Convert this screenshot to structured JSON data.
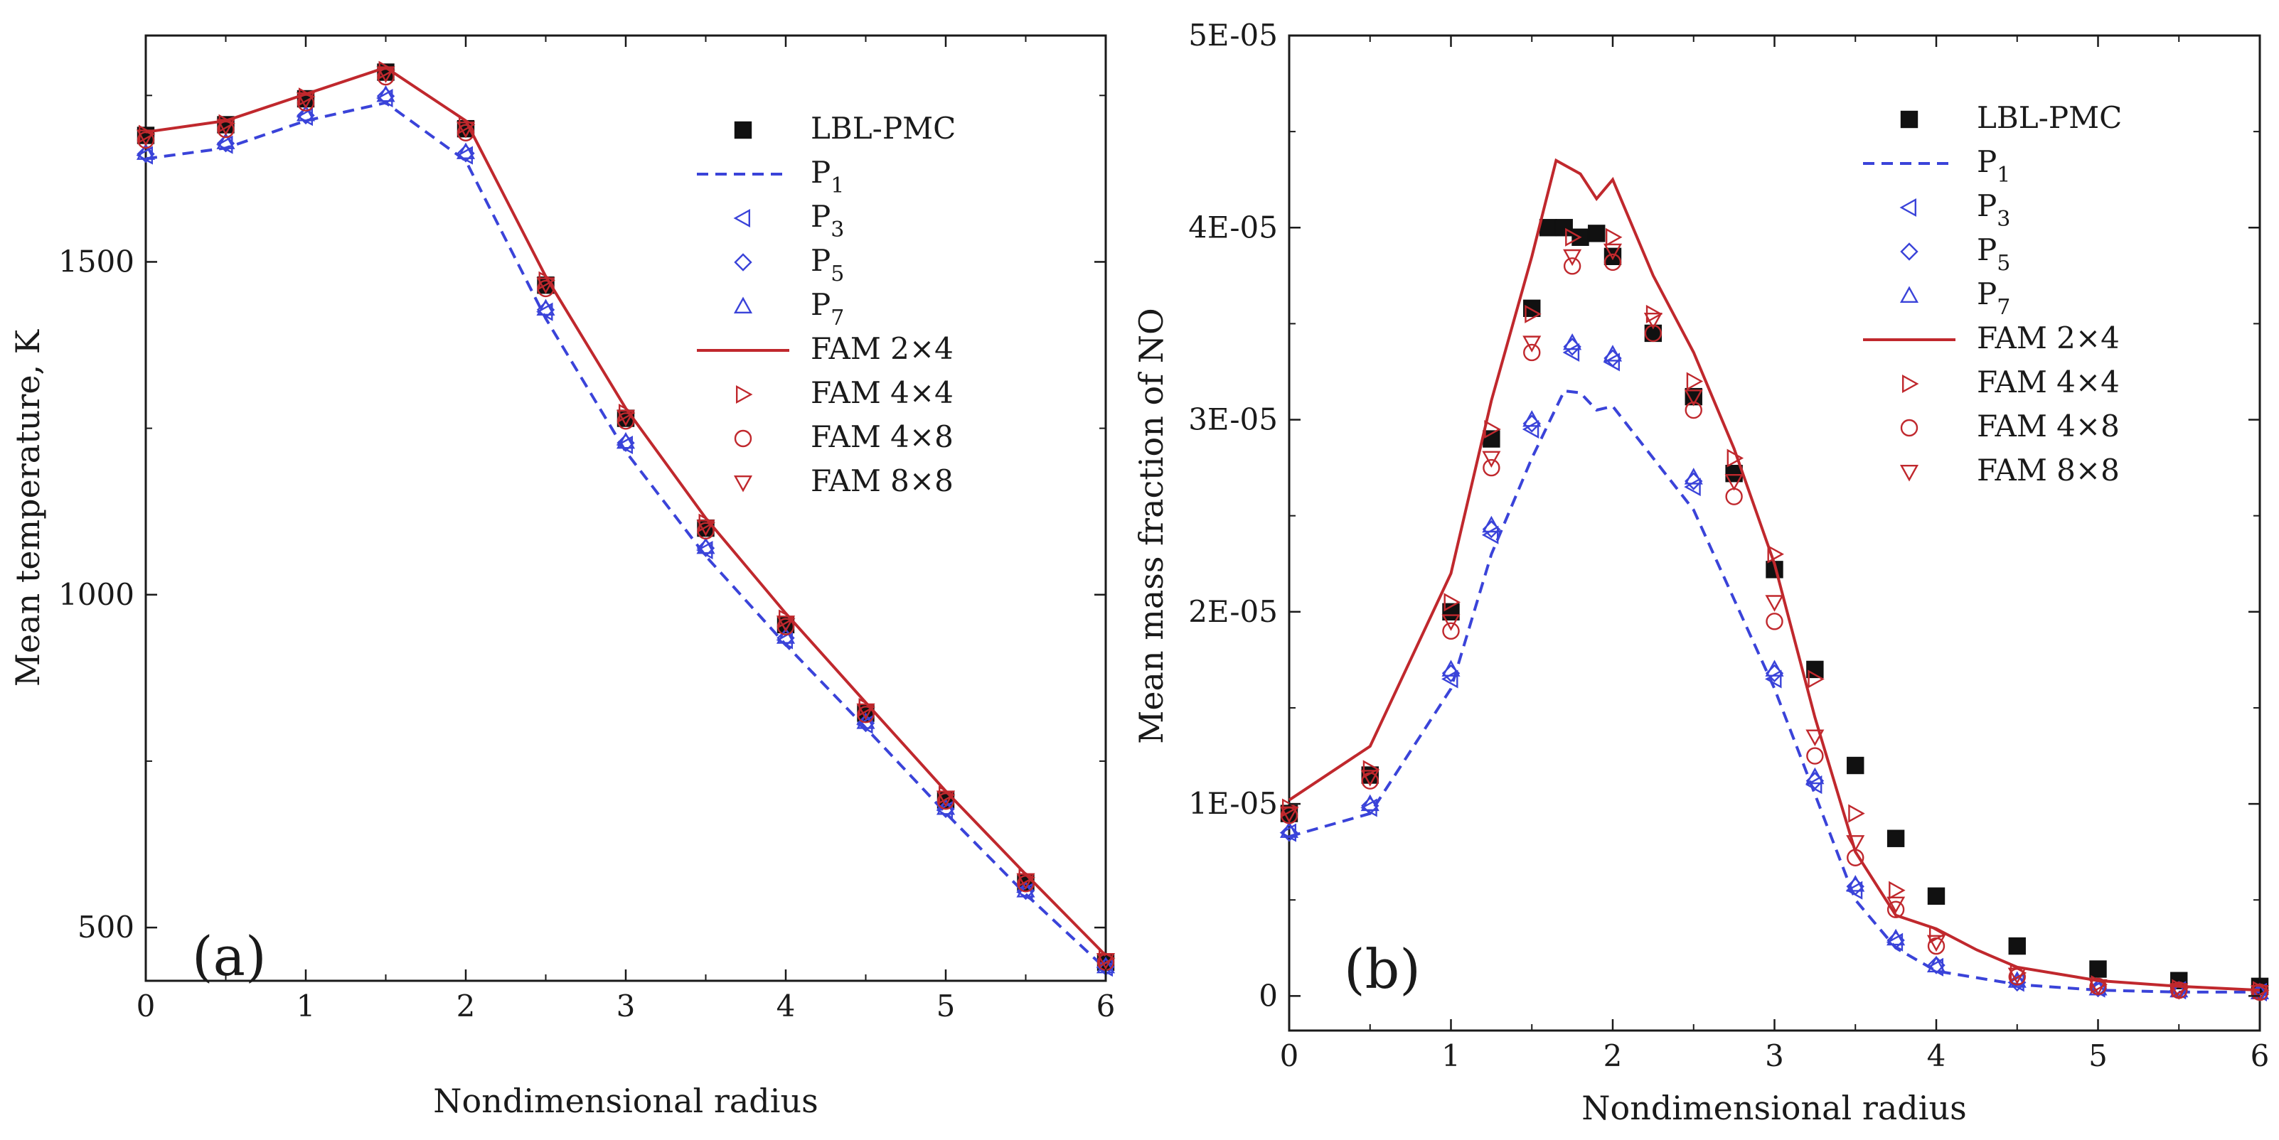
{
  "colors": {
    "lbl_pmc": "#111111",
    "p_series": "#3a43d9",
    "fam_series": "#c0282d",
    "frame": "#1a1a1a"
  },
  "legend": [
    {
      "key": "lbl",
      "label": "LBL-PMC",
      "base": "LBL-PMC",
      "sub": "",
      "marker": "square",
      "color": "#111111"
    },
    {
      "key": "p1",
      "label": "P1",
      "base": "P",
      "sub": "1",
      "marker": "dash",
      "color": "#3a43d9"
    },
    {
      "key": "p3",
      "label": "P3",
      "base": "P",
      "sub": "3",
      "marker": "tri-left",
      "color": "#3a43d9"
    },
    {
      "key": "p5",
      "label": "P5",
      "base": "P",
      "sub": "5",
      "marker": "diamond",
      "color": "#3a43d9"
    },
    {
      "key": "p7",
      "label": "P7",
      "base": "P",
      "sub": "7",
      "marker": "tri-up",
      "color": "#3a43d9"
    },
    {
      "key": "fam24",
      "label": "FAM 2×4",
      "base": "FAM 2×4",
      "sub": "",
      "marker": "solid",
      "color": "#c0282d"
    },
    {
      "key": "fam44",
      "label": "FAM 4×4",
      "base": "FAM 4×4",
      "sub": "",
      "marker": "tri-right",
      "color": "#c0282d"
    },
    {
      "key": "fam48",
      "label": "FAM 4×8",
      "base": "FAM 4×8",
      "sub": "",
      "marker": "circle",
      "color": "#c0282d"
    },
    {
      "key": "fam88",
      "label": "FAM 8×8",
      "base": "FAM 8×8",
      "sub": "",
      "marker": "tri-down",
      "color": "#c0282d"
    }
  ],
  "chart_data": [
    {
      "type": "line",
      "panel_label": "(a)",
      "xlabel": "Nondimensional radius",
      "ylabel": "Mean temperature, K",
      "xlim": [
        0,
        6
      ],
      "ylim": [
        420,
        1840
      ],
      "xticks": [
        0,
        1,
        2,
        3,
        4,
        5,
        6
      ],
      "xtick_labels": [
        "0",
        "1",
        "2",
        "3",
        "4",
        "5",
        "6"
      ],
      "yticks": [
        500,
        1000,
        1500
      ],
      "ytick_labels": [
        "500",
        "1000",
        "1500"
      ],
      "legend_position": "top-right",
      "series": [
        {
          "key": "lbl",
          "name": "LBL-PMC",
          "x": [
            0,
            0.5,
            1,
            1.5,
            2,
            2.5,
            3,
            3.5,
            4,
            4.5,
            5,
            5.5,
            6
          ],
          "y": [
            1690,
            1706,
            1745,
            1785,
            1700,
            1465,
            1265,
            1100,
            955,
            822,
            692,
            568,
            448
          ]
        },
        {
          "key": "p1",
          "name": "P1",
          "x": [
            0,
            0.5,
            1,
            1.5,
            2,
            2.5,
            3,
            3.5,
            4,
            4.5,
            5,
            5.5,
            6
          ],
          "y": [
            1655,
            1671,
            1712,
            1739,
            1652,
            1415,
            1215,
            1058,
            925,
            800,
            672,
            550,
            438
          ]
        },
        {
          "key": "p3",
          "name": "P3",
          "x": [
            0,
            0.5,
            1,
            1.5,
            2,
            2.5,
            3,
            3.5,
            4,
            4.5,
            5,
            5.5,
            6
          ],
          "y": [
            1660,
            1676,
            1718,
            1746,
            1660,
            1425,
            1225,
            1067,
            932,
            805,
            676,
            553,
            440
          ]
        },
        {
          "key": "p5",
          "name": "P5",
          "x": [
            0,
            0.5,
            1,
            1.5,
            2,
            2.5,
            3,
            3.5,
            4,
            4.5,
            5,
            5.5,
            6
          ],
          "y": [
            1662,
            1678,
            1720,
            1749,
            1663,
            1428,
            1228,
            1070,
            935,
            807,
            678,
            555,
            441
          ]
        },
        {
          "key": "p7",
          "name": "P7",
          "x": [
            0,
            0.5,
            1,
            1.5,
            2,
            2.5,
            3,
            3.5,
            4,
            4.5,
            5,
            5.5,
            6
          ],
          "y": [
            1664,
            1680,
            1722,
            1751,
            1665,
            1430,
            1230,
            1072,
            937,
            809,
            680,
            556,
            442
          ]
        },
        {
          "key": "fam24",
          "name": "FAM 2×4",
          "x": [
            0,
            0.5,
            1,
            1.5,
            2,
            2.5,
            3,
            3.5,
            4,
            4.5,
            5,
            5.5,
            6
          ],
          "y": [
            1695,
            1712,
            1752,
            1792,
            1712,
            1478,
            1280,
            1115,
            972,
            838,
            705,
            580,
            458
          ]
        },
        {
          "key": "fam44",
          "name": "FAM 4×4",
          "x": [
            0,
            0.5,
            1,
            1.5,
            2,
            2.5,
            3,
            3.5,
            4,
            4.5,
            5,
            5.5,
            6
          ],
          "y": [
            1692,
            1708,
            1748,
            1788,
            1706,
            1472,
            1273,
            1108,
            964,
            831,
            699,
            575,
            454
          ]
        },
        {
          "key": "fam48",
          "name": "FAM 4×8",
          "x": [
            0,
            0.5,
            1,
            1.5,
            2,
            2.5,
            3,
            3.5,
            4,
            4.5,
            5,
            5.5,
            6
          ],
          "y": [
            1683,
            1699,
            1739,
            1778,
            1694,
            1460,
            1261,
            1096,
            952,
            820,
            690,
            566,
            448
          ]
        },
        {
          "key": "fam88",
          "name": "FAM 8×8",
          "x": [
            0,
            0.5,
            1,
            1.5,
            2,
            2.5,
            3,
            3.5,
            4,
            4.5,
            5,
            5.5,
            6
          ],
          "y": [
            1688,
            1704,
            1744,
            1783,
            1700,
            1466,
            1267,
            1102,
            958,
            826,
            695,
            571,
            451
          ]
        }
      ]
    },
    {
      "type": "line",
      "panel_label": "(b)",
      "xlabel": "Nondimensional radius",
      "ylabel": "Mean mass fraction of NO",
      "xlim": [
        0,
        6
      ],
      "ylim": [
        -1.8e-06,
        5e-05
      ],
      "xticks": [
        0,
        1,
        2,
        3,
        4,
        5,
        6
      ],
      "xtick_labels": [
        "0",
        "1",
        "2",
        "3",
        "4",
        "5",
        "6"
      ],
      "yticks": [
        0,
        1e-05,
        2e-05,
        3e-05,
        4e-05,
        5e-05
      ],
      "ytick_labels": [
        "0",
        "1E-05",
        "2E-05",
        "3E-05",
        "4E-05",
        "5E-05"
      ],
      "legend_position": "top-right",
      "series": [
        {
          "key": "lbl",
          "name": "LBL-PMC",
          "x": [
            0,
            0.5,
            1,
            1.25,
            1.5,
            1.6,
            1.7,
            1.8,
            1.9,
            2,
            2.25,
            2.5,
            2.75,
            3,
            3.25,
            3.5,
            3.75,
            4,
            4.5,
            5,
            5.5,
            6
          ],
          "y": [
            9.5e-06,
            1.15e-05,
            2e-05,
            2.9e-05,
            3.58e-05,
            4e-05,
            4e-05,
            3.95e-05,
            3.97e-05,
            3.85e-05,
            3.45e-05,
            3.12e-05,
            2.72e-05,
            2.22e-05,
            1.7e-05,
            1.2e-05,
            8.2e-06,
            5.2e-06,
            2.6e-06,
            1.4e-06,
            8e-07,
            5e-07
          ]
        },
        {
          "key": "p1",
          "name": "P1",
          "x": [
            0,
            0.5,
            1,
            1.25,
            1.5,
            1.7,
            1.8,
            1.9,
            2,
            2.5,
            3,
            3.25,
            3.5,
            3.75,
            4,
            4.5,
            5,
            5.5,
            6
          ],
          "y": [
            8.3e-06,
            9.5e-06,
            1.6e-05,
            2.3e-05,
            2.8e-05,
            3.15e-05,
            3.14e-05,
            3.05e-05,
            3.07e-05,
            2.53e-05,
            1.6e-05,
            1.05e-05,
            5e-06,
            2.5e-06,
            1.3e-06,
            6e-07,
            3e-07,
            2e-07,
            2e-07
          ]
        },
        {
          "key": "p3",
          "name": "P3",
          "x": [
            0,
            0.5,
            1,
            1.25,
            1.5,
            1.75,
            2,
            2.5,
            3,
            3.25,
            3.5,
            3.75,
            4,
            4.5,
            5,
            5.5,
            6
          ],
          "y": [
            8.5e-06,
            9.8e-06,
            1.65e-05,
            2.4e-05,
            2.95e-05,
            3.35e-05,
            3.3e-05,
            2.65e-05,
            1.65e-05,
            1.1e-05,
            5.5e-06,
            2.8e-06,
            1.5e-06,
            7e-07,
            4e-07,
            3e-07,
            2e-07
          ]
        },
        {
          "key": "p5",
          "name": "P5",
          "x": [
            0,
            0.5,
            1,
            1.25,
            1.5,
            1.75,
            2,
            2.5,
            3,
            3.25,
            3.5,
            3.75,
            4,
            4.5,
            5,
            5.5,
            6
          ],
          "y": [
            8.5e-06,
            9.9e-06,
            1.68e-05,
            2.43e-05,
            2.98e-05,
            3.38e-05,
            3.32e-05,
            2.68e-05,
            1.68e-05,
            1.12e-05,
            5.7e-06,
            2.9e-06,
            1.6e-06,
            7e-07,
            4e-07,
            3e-07,
            2e-07
          ]
        },
        {
          "key": "p7",
          "name": "P7",
          "x": [
            0,
            0.5,
            1,
            1.25,
            1.5,
            1.75,
            2,
            2.5,
            3,
            3.25,
            3.5,
            3.75,
            4,
            4.5,
            5,
            5.5,
            6
          ],
          "y": [
            8.6e-06,
            1e-05,
            1.7e-05,
            2.45e-05,
            3e-05,
            3.4e-05,
            3.34e-05,
            2.7e-05,
            1.7e-05,
            1.14e-05,
            5.8e-06,
            3e-06,
            1.6e-06,
            8e-07,
            4e-07,
            3e-07,
            2e-07
          ]
        },
        {
          "key": "fam24",
          "name": "FAM 2×4",
          "x": [
            0,
            0.5,
            1,
            1.25,
            1.5,
            1.65,
            1.8,
            1.9,
            2,
            2.25,
            2.5,
            2.75,
            3,
            3.25,
            3.5,
            3.75,
            4,
            4.25,
            4.5,
            5,
            5.5,
            6
          ],
          "y": [
            1.02e-05,
            1.3e-05,
            2.2e-05,
            3.1e-05,
            3.85e-05,
            4.35e-05,
            4.28e-05,
            4.15e-05,
            4.25e-05,
            3.75e-05,
            3.35e-05,
            2.85e-05,
            2.25e-05,
            1.45e-05,
            7.5e-06,
            4.2e-06,
            3.5e-06,
            2.4e-06,
            1.5e-06,
            8e-07,
            5e-07,
            3e-07
          ]
        },
        {
          "key": "fam44",
          "name": "FAM 4×4",
          "x": [
            0,
            0.5,
            1,
            1.25,
            1.5,
            1.75,
            2,
            2.25,
            2.5,
            2.75,
            3,
            3.25,
            3.5,
            3.75,
            4,
            4.5,
            5,
            5.5,
            6
          ],
          "y": [
            9.8e-06,
            1.18e-05,
            2.05e-05,
            2.95e-05,
            3.55e-05,
            3.95e-05,
            3.95e-05,
            3.55e-05,
            3.2e-05,
            2.8e-05,
            2.3e-05,
            1.65e-05,
            9.5e-06,
            5.5e-06,
            3.2e-06,
            1.2e-06,
            6e-07,
            4e-07,
            3e-07
          ]
        },
        {
          "key": "fam48",
          "name": "FAM 4×8",
          "x": [
            0,
            0.5,
            1,
            1.25,
            1.5,
            1.75,
            2,
            2.25,
            2.5,
            2.75,
            3,
            3.25,
            3.5,
            3.75,
            4,
            4.5,
            5,
            5.5,
            6
          ],
          "y": [
            9.4e-06,
            1.12e-05,
            1.9e-05,
            2.75e-05,
            3.35e-05,
            3.8e-05,
            3.82e-05,
            3.45e-05,
            3.05e-05,
            2.6e-05,
            1.95e-05,
            1.25e-05,
            7.2e-06,
            4.5e-06,
            2.6e-06,
            1e-06,
            5e-07,
            3e-07,
            2e-07
          ]
        },
        {
          "key": "fam88",
          "name": "FAM 8×8",
          "x": [
            0,
            0.5,
            1,
            1.25,
            1.5,
            1.75,
            2,
            2.25,
            2.5,
            2.75,
            3,
            3.25,
            3.5,
            3.75,
            4,
            4.5,
            5,
            5.5,
            6
          ],
          "y": [
            9.5e-06,
            1.14e-05,
            1.95e-05,
            2.8e-05,
            3.4e-05,
            3.85e-05,
            3.88e-05,
            3.52e-05,
            3.12e-05,
            2.68e-05,
            2.05e-05,
            1.35e-05,
            8e-06,
            4.8e-06,
            2.8e-06,
            1.1e-06,
            5e-07,
            3e-07,
            2e-07
          ]
        }
      ]
    }
  ]
}
